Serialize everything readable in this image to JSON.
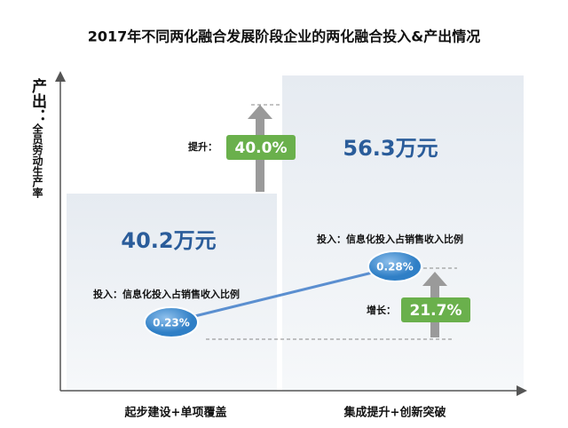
{
  "title": "2017年不同两化融合发展阶段企业的两化融合投入&产出情况",
  "y_axis": {
    "title": "产出：",
    "subtitle": "全员劳动生产率"
  },
  "stages": [
    {
      "label": "起步建设+单项覆盖",
      "output": "40.2万元",
      "input_label": "投入：信息化投入占销售收入比例",
      "input": "0.23%"
    },
    {
      "label": "集成提升+创新突破",
      "output": "56.3万元",
      "input_label": "投入：信息化投入占销售收入比例",
      "input": "0.28%"
    }
  ],
  "output_change": {
    "label": "提升：",
    "value": "40.0%"
  },
  "input_change": {
    "label": "增长：",
    "value": "21.7%"
  }
}
